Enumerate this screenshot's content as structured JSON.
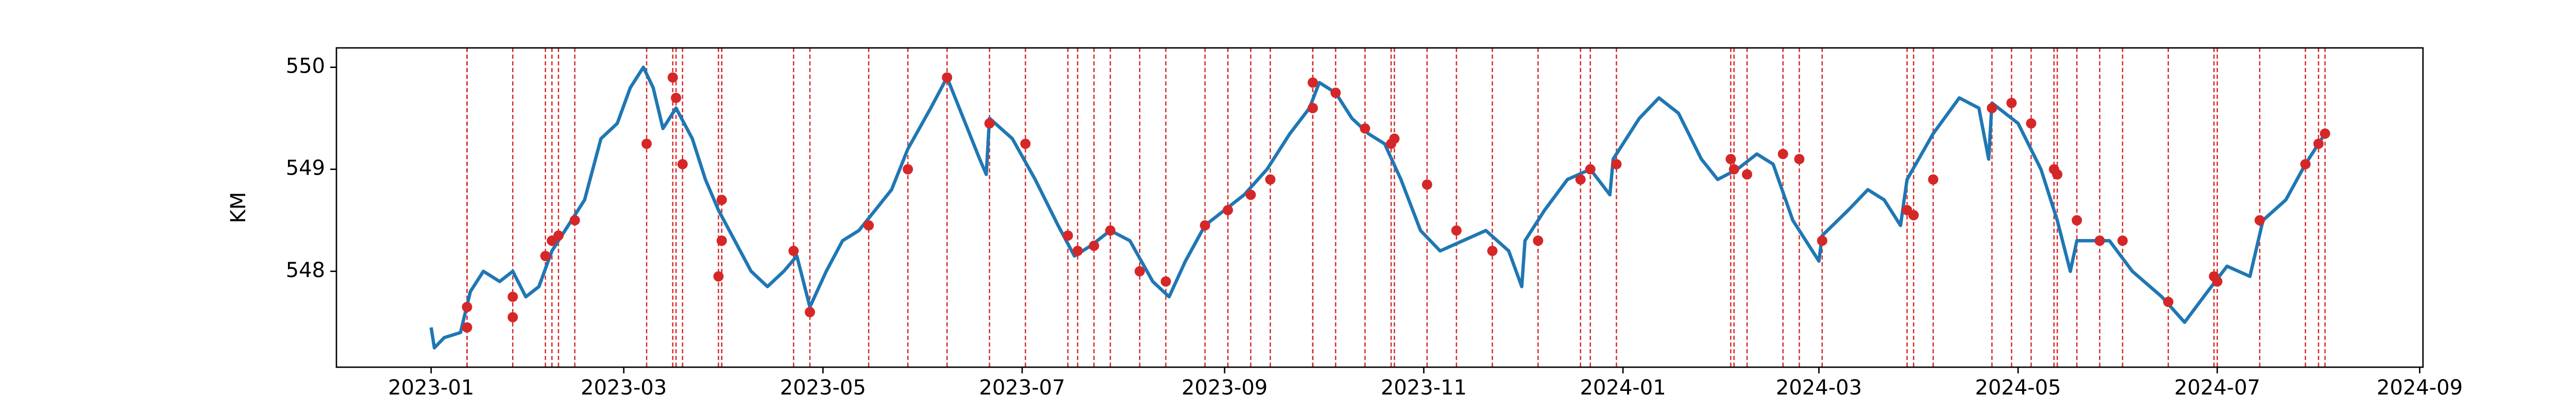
{
  "chart_data": {
    "type": "line",
    "ylabel": "KM",
    "color": "#1f77b4",
    "x": [
      "2023-01-01",
      "2023-01-02",
      "2023-01-05",
      "2023-01-10",
      "2023-01-13",
      "2023-01-17",
      "2023-01-22",
      "2023-01-26",
      "2023-01-30",
      "2023-02-03",
      "2023-02-07",
      "2023-02-12",
      "2023-02-17",
      "2023-02-22",
      "2023-02-27",
      "2023-03-03",
      "2023-03-07",
      "2023-03-10",
      "2023-03-13",
      "2023-03-17",
      "2023-03-22",
      "2023-03-26",
      "2023-03-30",
      "2023-04-04",
      "2023-04-09",
      "2023-04-14",
      "2023-04-19",
      "2023-04-23",
      "2023-04-27",
      "2023-05-02",
      "2023-05-07",
      "2023-05-12",
      "2023-05-17",
      "2023-05-22",
      "2023-05-27",
      "2023-06-03",
      "2023-06-08",
      "2023-06-13",
      "2023-06-18",
      "2023-06-20",
      "2023-06-21",
      "2023-06-28",
      "2023-07-05",
      "2023-07-12",
      "2023-07-17",
      "2023-07-22",
      "2023-07-28",
      "2023-08-03",
      "2023-08-10",
      "2023-08-15",
      "2023-08-20",
      "2023-08-26",
      "2023-09-01",
      "2023-09-07",
      "2023-09-14",
      "2023-09-21",
      "2023-09-27",
      "2023-09-30",
      "2023-10-05",
      "2023-10-10",
      "2023-10-15",
      "2023-10-20",
      "2023-10-25",
      "2023-10-31",
      "2023-11-06",
      "2023-11-13",
      "2023-11-20",
      "2023-11-27",
      "2023-12-01",
      "2023-12-02",
      "2023-12-08",
      "2023-12-15",
      "2023-12-22",
      "2023-12-28",
      "2023-12-29",
      "2024-01-06",
      "2024-01-12",
      "2024-01-18",
      "2024-01-25",
      "2024-01-30",
      "2024-02-05",
      "2024-02-11",
      "2024-02-16",
      "2024-02-22",
      "2024-03-01",
      "2024-03-02",
      "2024-03-10",
      "2024-03-16",
      "2024-03-21",
      "2024-03-26",
      "2024-03-28",
      "2024-04-05",
      "2024-04-13",
      "2024-04-19",
      "2024-04-22",
      "2024-04-23",
      "2024-05-01",
      "2024-05-08",
      "2024-05-13",
      "2024-05-17",
      "2024-05-19",
      "2024-05-29",
      "2024-06-05",
      "2024-06-14",
      "2024-06-21",
      "2024-06-28",
      "2024-07-04",
      "2024-07-11",
      "2024-07-15",
      "2024-07-22",
      "2024-07-28",
      "2024-08-03"
    ],
    "values": [
      547.45,
      547.25,
      547.35,
      547.4,
      547.8,
      548.0,
      547.9,
      548.0,
      547.75,
      547.85,
      548.2,
      548.45,
      548.7,
      549.3,
      549.45,
      549.8,
      550.0,
      549.8,
      549.4,
      549.6,
      549.3,
      548.9,
      548.6,
      548.3,
      548.0,
      547.85,
      548.0,
      548.15,
      547.65,
      548.0,
      548.3,
      548.4,
      548.6,
      548.8,
      549.2,
      549.6,
      549.9,
      549.5,
      549.1,
      548.95,
      549.5,
      549.3,
      548.9,
      548.45,
      548.15,
      548.25,
      548.4,
      548.3,
      547.9,
      547.75,
      548.1,
      548.45,
      548.6,
      548.75,
      549.0,
      549.35,
      549.6,
      549.85,
      549.75,
      549.5,
      549.35,
      549.25,
      548.9,
      548.4,
      548.2,
      548.3,
      548.4,
      548.2,
      547.85,
      548.3,
      548.6,
      548.9,
      549.0,
      548.75,
      549.1,
      549.5,
      549.7,
      549.55,
      549.1,
      548.9,
      549.0,
      549.15,
      549.05,
      548.5,
      548.1,
      548.35,
      548.6,
      548.8,
      548.7,
      548.45,
      548.9,
      549.35,
      549.7,
      549.6,
      549.1,
      549.65,
      549.45,
      549.0,
      548.5,
      548.0,
      548.3,
      548.3,
      548.0,
      547.75,
      547.5,
      547.8,
      548.05,
      547.95,
      548.5,
      548.7,
      549.05,
      549.35
    ],
    "events": {
      "color": "#d62728",
      "x": [
        "2023-01-12",
        "2023-01-12",
        "2023-01-26",
        "2023-01-26",
        "2023-02-05",
        "2023-02-07",
        "2023-02-09",
        "2023-02-14",
        "2023-03-08",
        "2023-03-16",
        "2023-03-17",
        "2023-03-19",
        "2023-03-31",
        "2023-03-31",
        "2023-03-30",
        "2023-04-22",
        "2023-04-27",
        "2023-05-15",
        "2023-05-27",
        "2023-06-08",
        "2023-06-21",
        "2023-07-02",
        "2023-07-15",
        "2023-07-18",
        "2023-07-23",
        "2023-07-28",
        "2023-08-06",
        "2023-08-14",
        "2023-08-26",
        "2023-09-02",
        "2023-09-09",
        "2023-09-15",
        "2023-09-28",
        "2023-09-28",
        "2023-10-05",
        "2023-10-14",
        "2023-10-23",
        "2023-10-22",
        "2023-11-02",
        "2023-11-11",
        "2023-11-22",
        "2023-12-06",
        "2023-12-19",
        "2023-12-22",
        "2023-12-30",
        "2024-02-03",
        "2024-02-04",
        "2024-02-08",
        "2024-02-19",
        "2024-02-24",
        "2024-03-02",
        "2024-03-28",
        "2024-03-30",
        "2024-04-05",
        "2024-04-23",
        "2024-04-29",
        "2024-05-05",
        "2024-05-12",
        "2024-05-13",
        "2024-05-19",
        "2024-05-26",
        "2024-06-02",
        "2024-06-16",
        "2024-06-30",
        "2024-07-01",
        "2024-07-14",
        "2024-07-28",
        "2024-08-01",
        "2024-08-03"
      ],
      "values": [
        547.45,
        547.65,
        547.55,
        547.75,
        548.15,
        548.3,
        548.35,
        548.5,
        549.25,
        549.9,
        549.7,
        549.05,
        548.7,
        548.3,
        547.95,
        548.2,
        547.6,
        548.45,
        549.0,
        549.9,
        549.45,
        549.25,
        548.35,
        548.2,
        548.25,
        548.4,
        548.0,
        547.9,
        548.45,
        548.6,
        548.75,
        548.9,
        549.6,
        549.85,
        549.75,
        549.4,
        549.3,
        549.25,
        548.85,
        548.4,
        548.2,
        548.3,
        548.9,
        549.0,
        549.05,
        549.1,
        549.0,
        548.95,
        549.15,
        549.1,
        548.3,
        548.6,
        548.55,
        548.9,
        549.6,
        549.65,
        549.45,
        549.0,
        548.95,
        548.5,
        548.3,
        548.3,
        547.7,
        547.95,
        547.9,
        548.5,
        549.05,
        549.25,
        549.35
      ]
    },
    "xlim": [
      "2022-12-03",
      "2024-09-02"
    ],
    "xticks": [
      {
        "value": "2023-01",
        "label": "2023-01"
      },
      {
        "value": "2023-03",
        "label": "2023-03"
      },
      {
        "value": "2023-05",
        "label": "2023-05"
      },
      {
        "value": "2023-07",
        "label": "2023-07"
      },
      {
        "value": "2023-09",
        "label": "2023-09"
      },
      {
        "value": "2023-11",
        "label": "2023-11"
      },
      {
        "value": "2024-01",
        "label": "2024-01"
      },
      {
        "value": "2024-03",
        "label": "2024-03"
      },
      {
        "value": "2024-05",
        "label": "2024-05"
      },
      {
        "value": "2024-07",
        "label": "2024-07"
      },
      {
        "value": "2024-09",
        "label": "2024-09"
      }
    ],
    "ylim": [
      547.06,
      550.19
    ],
    "yticks": [
      548,
      549,
      550
    ]
  }
}
